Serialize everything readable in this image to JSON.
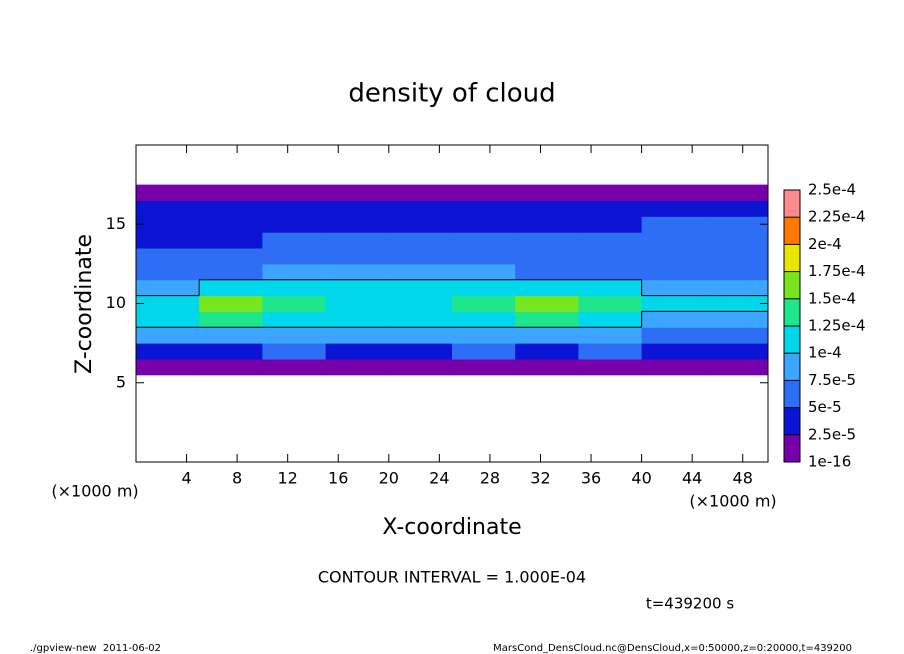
{
  "chart_data": {
    "type": "heatmap",
    "title": "density of cloud",
    "xlabel": "X-coordinate",
    "ylabel": "Z-coordinate",
    "x_unit_label": "(×1000 m)",
    "xlim": [
      0,
      50
    ],
    "ylim": [
      0,
      20
    ],
    "xticks": [
      4,
      8,
      12,
      16,
      20,
      24,
      28,
      32,
      36,
      40,
      44,
      48
    ],
    "yticks": [
      5,
      10,
      15
    ],
    "x": [
      2.5,
      7.5,
      12.5,
      17.5,
      22.5,
      27.5,
      32.5,
      37.5,
      42.5,
      47.5
    ],
    "y": [
      6,
      7,
      8,
      9,
      10,
      11,
      12,
      13,
      14,
      15,
      16,
      17
    ],
    "values": [
      [
        1e-05,
        1e-05,
        1e-05,
        1e-05,
        1e-05,
        1e-05,
        1e-05,
        1e-05,
        1e-05,
        1e-05
      ],
      [
        4e-05,
        4e-05,
        5e-05,
        4e-05,
        4e-05,
        5e-05,
        4e-05,
        5e-05,
        4e-05,
        4e-05
      ],
      [
        8e-05,
        8e-05,
        9e-05,
        8e-05,
        8e-05,
        8e-05,
        9e-05,
        9e-05,
        7e-05,
        7e-05
      ],
      [
        0.00011,
        0.00013,
        0.00012,
        0.00011,
        0.00011,
        0.00012,
        0.00013,
        0.00012,
        9e-05,
        9e-05
      ],
      [
        0.00012,
        0.00015,
        0.00013,
        0.00012,
        0.00012,
        0.00013,
        0.00015,
        0.00013,
        0.0001,
        0.0001
      ],
      [
        9e-05,
        0.00012,
        0.00011,
        0.00011,
        0.00011,
        0.00011,
        0.00012,
        0.0001,
        8e-05,
        9e-05
      ],
      [
        6e-05,
        7e-05,
        9e-05,
        9e-05,
        8e-05,
        8e-05,
        7e-05,
        6e-05,
        6e-05,
        6e-05
      ],
      [
        5e-05,
        5e-05,
        6e-05,
        6e-05,
        6e-05,
        6e-05,
        6e-05,
        6e-05,
        6e-05,
        6e-05
      ],
      [
        4e-05,
        4e-05,
        5e-05,
        5e-05,
        5e-05,
        5e-05,
        5e-05,
        5e-05,
        6e-05,
        6e-05
      ],
      [
        4e-05,
        4e-05,
        4e-05,
        4e-05,
        4e-05,
        4e-05,
        4e-05,
        4e-05,
        5e-05,
        5e-05
      ],
      [
        3e-05,
        3e-05,
        3e-05,
        3e-05,
        3e-05,
        3e-05,
        3e-05,
        3e-05,
        4e-05,
        4e-05
      ],
      [
        1e-05,
        1e-05,
        1e-05,
        1e-05,
        1e-05,
        1e-05,
        1e-05,
        1e-05,
        1e-05,
        1e-05
      ]
    ],
    "colorbar": {
      "ticks": [
        {
          "value": 1e-16,
          "label": "1e-16"
        },
        {
          "value": 2.5e-05,
          "label": "2.5e-5"
        },
        {
          "value": 5e-05,
          "label": "5e-5"
        },
        {
          "value": 7.5e-05,
          "label": "7.5e-5"
        },
        {
          "value": 0.0001,
          "label": "1e-4"
        },
        {
          "value": 0.000125,
          "label": "1.25e-4"
        },
        {
          "value": 0.00015,
          "label": "1.5e-4"
        },
        {
          "value": 0.000175,
          "label": "1.75e-4"
        },
        {
          "value": 0.0002,
          "label": "2e-4"
        },
        {
          "value": 0.000225,
          "label": "2.25e-4"
        },
        {
          "value": 0.00025,
          "label": "2.5e-4"
        }
      ],
      "colors": [
        "#7800aa",
        "#0a14d2",
        "#2d6ef5",
        "#3ca5ff",
        "#00d7eb",
        "#1ee68c",
        "#78e61e",
        "#e6e600",
        "#ff7800",
        "#ff8c8c"
      ]
    },
    "contour_interval": {
      "value": 0.0001,
      "label": "CONTOUR INTERVAL = 1.000E-04"
    },
    "time_label": "t=439200 s",
    "footer_left": "./gpview-new  2011-06-02",
    "footer_right": "MarsCond_DensCloud.nc@DensCloud,x=0:50000,z=0:20000,t=439200"
  }
}
